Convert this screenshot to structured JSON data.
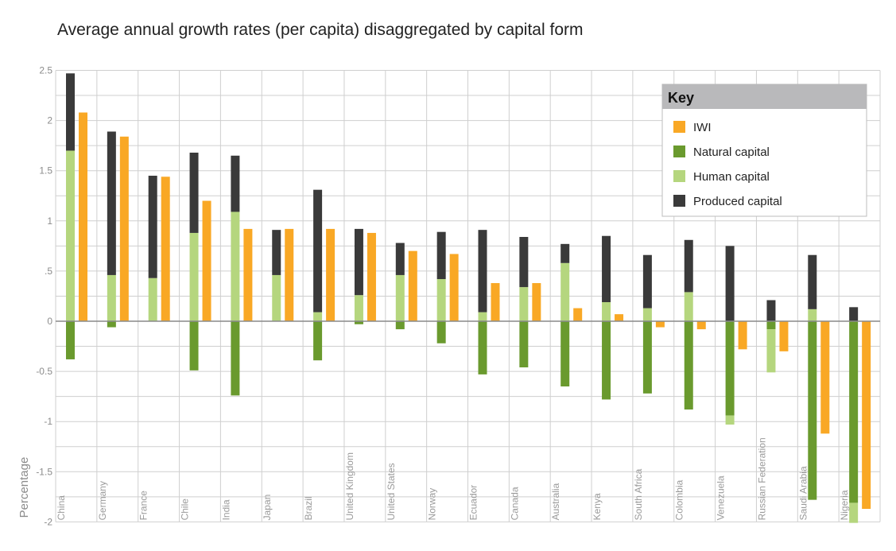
{
  "title": "Average annual growth rates (per capita) disaggregated by capital form",
  "chart_data": {
    "type": "bar",
    "title": "Average annual growth rates (per capita) disaggregated by capital form",
    "xlabel": "",
    "ylabel": "Percentage",
    "ylim": [
      -2,
      2.5
    ],
    "yticks": [
      2.5,
      2,
      1.5,
      1,
      0.5,
      0,
      -0.5,
      -1,
      -1.5,
      -2
    ],
    "ytick_labels": [
      "2.5",
      "2",
      "1.5",
      "1",
      ".5",
      "0",
      "-0.5",
      "-1",
      "-1.5",
      "-2"
    ],
    "grid": true,
    "legend_position": "top-right",
    "legend_title": "Key",
    "categories": [
      "China",
      "Germany",
      "France",
      "Chile",
      "India",
      "Japan",
      "Brazil",
      "United Kingdom",
      "United States",
      "Norway",
      "Ecuador",
      "Canada",
      "Australia",
      "Kenya",
      "South Africa",
      "Colombia",
      "Venezuela",
      "Russian Federation",
      "Saudi Arabia",
      "Nigeria"
    ],
    "series": [
      {
        "name": "IWI",
        "color": "#f9a825",
        "values": [
          2.08,
          1.84,
          1.44,
          1.2,
          0.92,
          0.92,
          0.92,
          0.88,
          0.7,
          0.67,
          0.38,
          0.38,
          0.13,
          0.07,
          -0.06,
          -0.08,
          -0.28,
          -0.3,
          -1.12,
          -1.87
        ]
      },
      {
        "name": "Natural capital",
        "color": "#6a9a2e",
        "values": [
          -0.38,
          -0.06,
          0,
          -0.49,
          -0.74,
          0,
          -0.39,
          -0.03,
          -0.08,
          -0.22,
          -0.53,
          -0.46,
          -0.65,
          -0.78,
          -0.72,
          -0.88,
          -0.94,
          -0.08,
          -1.78,
          -1.81
        ]
      },
      {
        "name": "Human capital",
        "color": "#b5d67e",
        "values": [
          1.7,
          0.46,
          0.43,
          0.88,
          1.09,
          0.46,
          0.09,
          0.26,
          0.46,
          0.42,
          0.09,
          0.34,
          0.58,
          0.19,
          0.13,
          0.29,
          -0.09,
          -0.43,
          0.12,
          -0.2
        ]
      },
      {
        "name": "Produced capital",
        "color": "#3a3a3a",
        "values": [
          0.77,
          1.43,
          1.02,
          0.8,
          0.56,
          0.45,
          1.22,
          0.66,
          0.32,
          0.47,
          0.82,
          0.5,
          0.19,
          0.66,
          0.53,
          0.52,
          0.75,
          0.21,
          0.54,
          0.14
        ]
      }
    ]
  }
}
